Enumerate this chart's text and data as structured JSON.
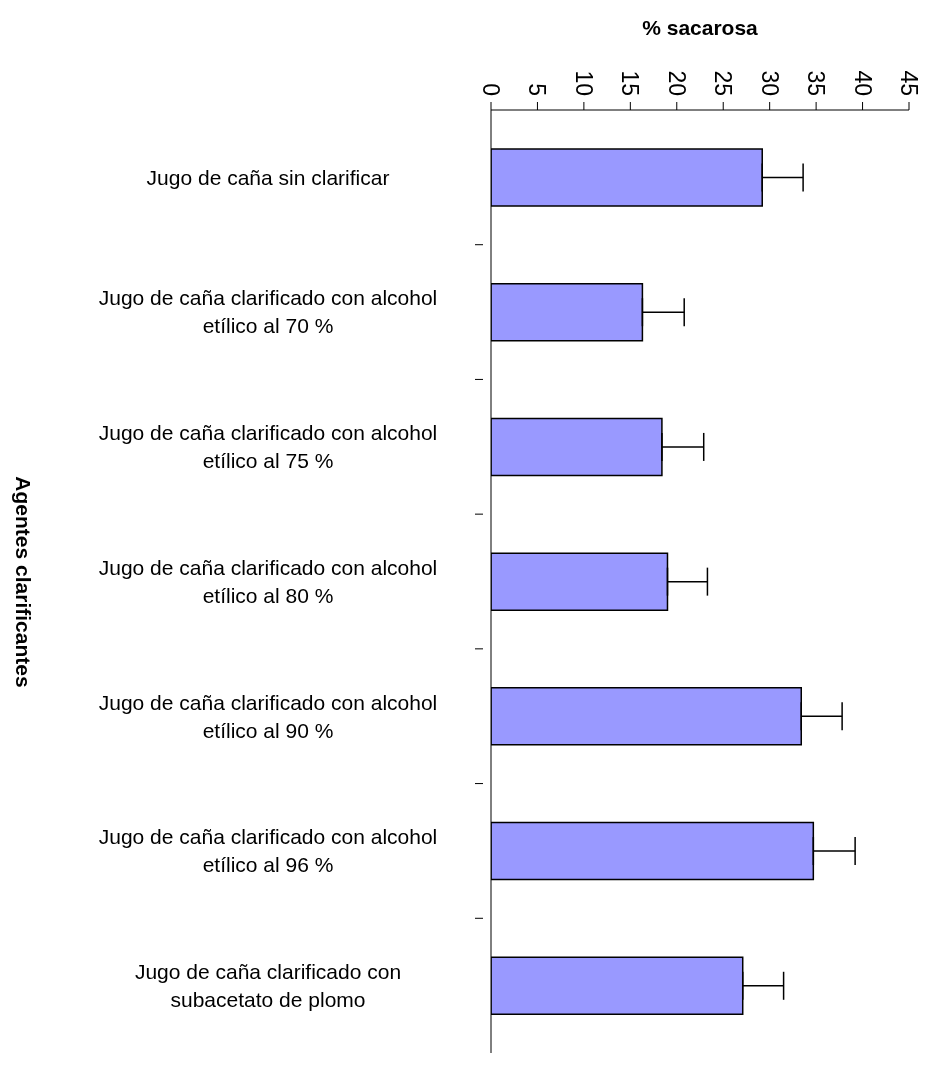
{
  "chart_data": {
    "type": "bar",
    "orientation": "horizontal",
    "xlabel": "% sacarosa",
    "ylabel": "Agentes clarificantes",
    "categories": [
      "Jugo de caña sin clarificar",
      "Jugo de caña clarificado con alcohol etílico al 70 %",
      "Jugo de caña clarificado con alcohol etílico al 75 %",
      "Jugo de caña clarificado con alcohol etílico al 80 %",
      "Jugo de caña clarificado con alcohol etílico al 90 %",
      "Jugo de caña clarificado con alcohol etílico al 96 %",
      "Jugo de caña clarificado con subacetato de plomo"
    ],
    "values": [
      29.2,
      16.3,
      18.4,
      19.0,
      33.4,
      34.7,
      27.1
    ],
    "errors": [
      [
        29.2,
        33.6
      ],
      [
        16.3,
        20.8
      ],
      [
        18.4,
        22.9
      ],
      [
        19.0,
        23.3
      ],
      [
        33.4,
        37.8
      ],
      [
        34.7,
        39.2
      ],
      [
        27.1,
        31.5
      ]
    ],
    "color": "#9999ff",
    "xlim": [
      0,
      45
    ],
    "xticks": [
      0,
      5,
      10,
      15,
      20,
      25,
      30,
      35,
      40,
      45
    ]
  }
}
